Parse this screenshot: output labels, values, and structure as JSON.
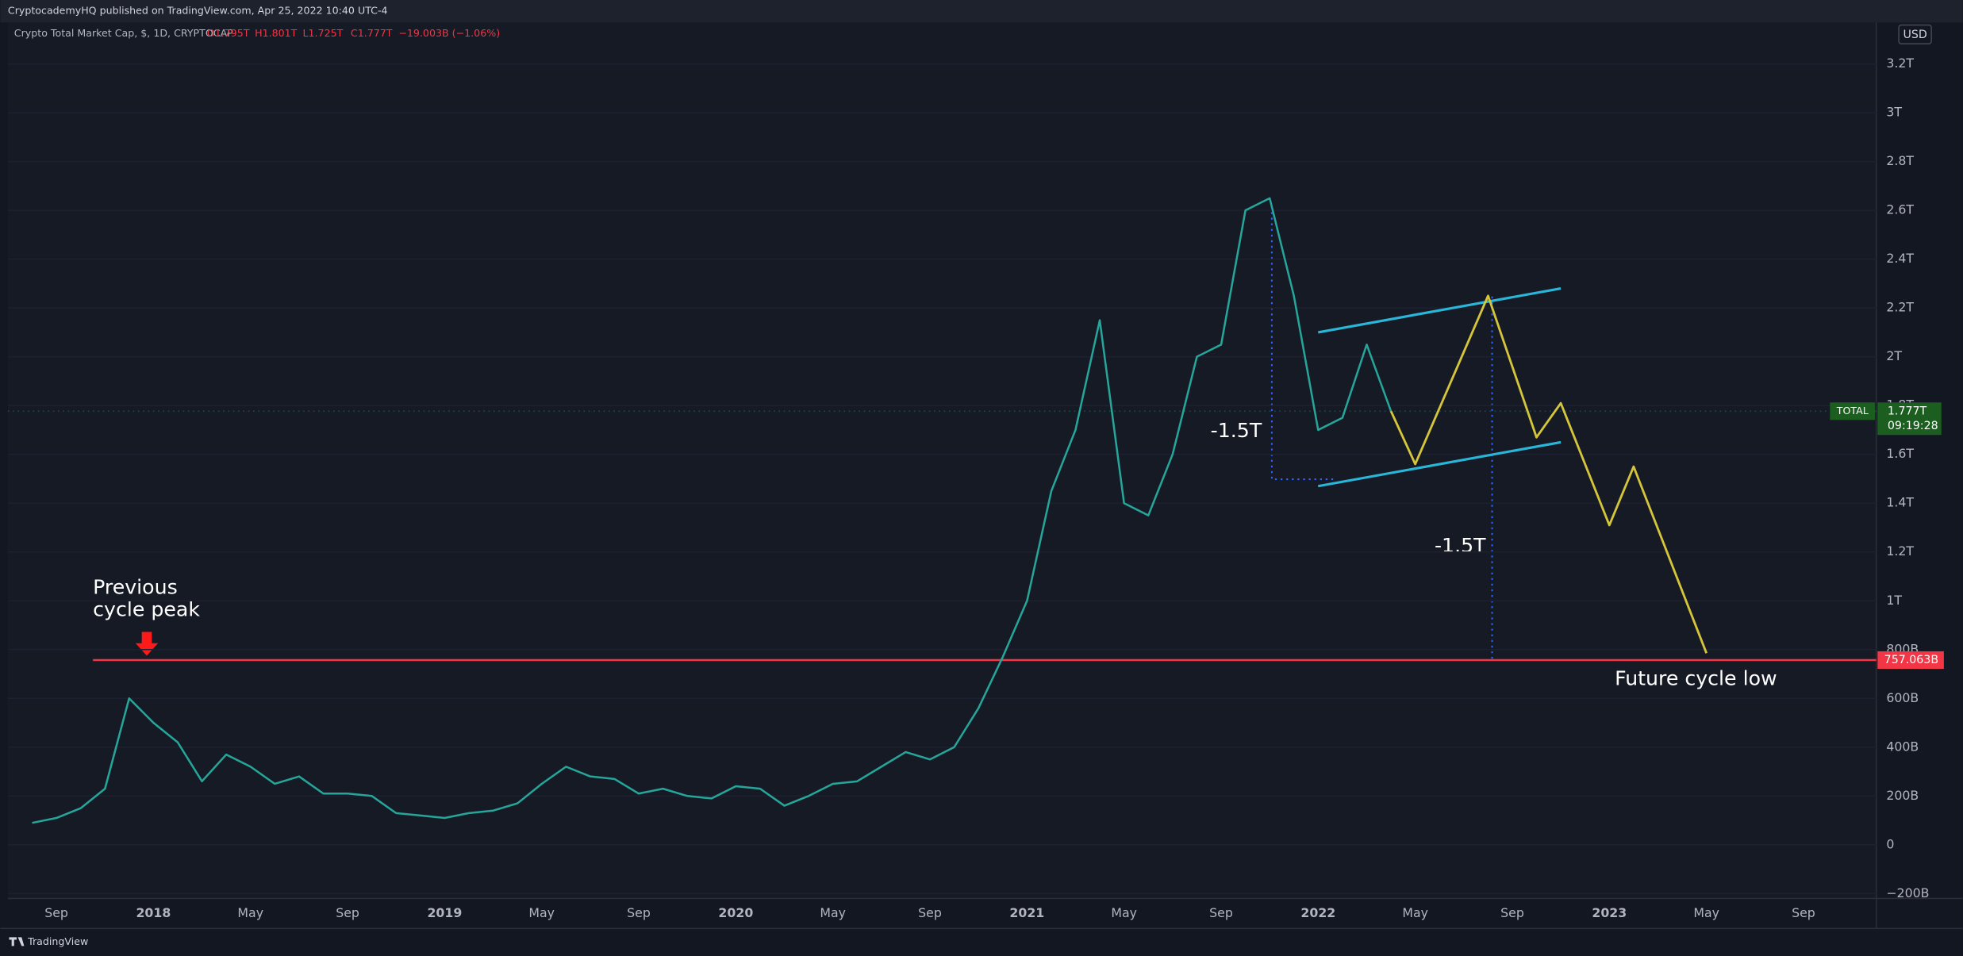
{
  "header": {
    "publisher": "CryptocademyHQ published on TradingView.com, Apr 25, 2022 10:40 UTC-4",
    "symbol": "Crypto Total Market Cap, $, 1D, CRYPTOCAP",
    "ohlc": [
      "O1.795T",
      "H1.801T",
      "L1.725T",
      "C1.777T",
      "−19.003B (−1.06%)"
    ],
    "currency": "USD"
  },
  "footer": "TradingView",
  "chart_data": {
    "type": "line",
    "x": [
      "2017-08",
      "2017-09",
      "2017-10",
      "2017-11",
      "2017-12",
      "2018-01",
      "2018-02",
      "2018-03",
      "2018-04",
      "2018-05",
      "2018-06",
      "2018-07",
      "2018-08",
      "2018-09",
      "2018-10",
      "2018-11",
      "2018-12",
      "2019-01",
      "2019-02",
      "2019-03",
      "2019-04",
      "2019-05",
      "2019-06",
      "2019-07",
      "2019-08",
      "2019-09",
      "2019-10",
      "2019-11",
      "2019-12",
      "2020-01",
      "2020-02",
      "2020-03",
      "2020-04",
      "2020-05",
      "2020-06",
      "2020-07",
      "2020-08",
      "2020-09",
      "2020-10",
      "2020-11",
      "2020-12",
      "2021-01",
      "2021-02",
      "2021-03",
      "2021-04",
      "2021-05",
      "2021-06",
      "2021-07",
      "2021-08",
      "2021-09",
      "2021-10",
      "2021-11",
      "2021-12",
      "2022-01",
      "2022-02",
      "2022-03",
      "2022-04"
    ],
    "series": [
      {
        "name": "TOTAL",
        "color": "#26a69a",
        "values": [
          90,
          110,
          150,
          230,
          600,
          500,
          420,
          260,
          370,
          320,
          250,
          280,
          210,
          210,
          200,
          130,
          120,
          110,
          130,
          140,
          170,
          250,
          320,
          280,
          270,
          210,
          230,
          200,
          190,
          240,
          230,
          160,
          200,
          250,
          260,
          320,
          380,
          350,
          400,
          560,
          770,
          1000,
          1450,
          1700,
          2150,
          1400,
          1350,
          1600,
          2000,
          2050,
          2600,
          2650,
          2250,
          1700,
          1750,
          2050,
          1777
        ]
      }
    ],
    "last": {
      "value": 1777,
      "label": "1.777T",
      "countdown": "09:19:28"
    },
    "level": {
      "value": 757.063,
      "label": "757.063B",
      "color": "#f23645"
    },
    "projection": {
      "color": "#d4c53a",
      "x": [
        "2022-04",
        "2022-05",
        "2022-08",
        "2022-10",
        "2022-11",
        "2023-01",
        "2023-02",
        "2023-05"
      ],
      "values": [
        1777,
        1560,
        2250,
        1670,
        1810,
        1310,
        1550,
        785
      ]
    },
    "channel": {
      "color": "#29b6d8",
      "upper": {
        "x": [
          "2022-01",
          "2022-11"
        ],
        "values": [
          2100,
          2280
        ]
      },
      "lower": {
        "x": [
          "2022-01",
          "2022-11"
        ],
        "values": [
          1470,
          1650
        ]
      }
    },
    "annotations": [
      "Previous\ncycle peak",
      "-1.5T",
      "-1.5T",
      "Future cycle low"
    ],
    "xlim": [
      "2017-07",
      "2023-12"
    ],
    "xticks": [
      {
        "value": "2017-09",
        "label": "Sep"
      },
      {
        "value": "2018-01",
        "label": "2018"
      },
      {
        "value": "2018-05",
        "label": "May"
      },
      {
        "value": "2018-09",
        "label": "Sep"
      },
      {
        "value": "2019-01",
        "label": "2019"
      },
      {
        "value": "2019-05",
        "label": "May"
      },
      {
        "value": "2019-09",
        "label": "Sep"
      },
      {
        "value": "2020-01",
        "label": "2020"
      },
      {
        "value": "2020-05",
        "label": "May"
      },
      {
        "value": "2020-09",
        "label": "Sep"
      },
      {
        "value": "2021-01",
        "label": "2021"
      },
      {
        "value": "2021-05",
        "label": "May"
      },
      {
        "value": "2021-09",
        "label": "Sep"
      },
      {
        "value": "2022-01",
        "label": "2022"
      },
      {
        "value": "2022-05",
        "label": "May"
      },
      {
        "value": "2022-09",
        "label": "Sep"
      },
      {
        "value": "2023-01",
        "label": "2023"
      },
      {
        "value": "2023-05",
        "label": "May"
      },
      {
        "value": "2023-09",
        "label": "Sep"
      }
    ],
    "ylim": [
      -220,
      3370
    ],
    "yticks": [
      {
        "value": -200,
        "label": "−200B"
      },
      0,
      {
        "value": 200,
        "label": "200B"
      },
      {
        "value": 400,
        "label": "400B"
      },
      {
        "value": 600,
        "label": "600B"
      },
      {
        "value": 800,
        "label": "800B"
      },
      {
        "value": 1000,
        "label": "1T"
      },
      {
        "value": 1200,
        "label": "1.2T"
      },
      {
        "value": 1400,
        "label": "1.4T"
      },
      {
        "value": 1600,
        "label": "1.6T"
      },
      {
        "value": 1800,
        "label": "1.8T"
      },
      {
        "value": 2000,
        "label": "2T"
      },
      {
        "value": 2200,
        "label": "2.2T"
      },
      {
        "value": 2400,
        "label": "2.4T"
      },
      {
        "value": 2600,
        "label": "2.6T"
      },
      {
        "value": 2800,
        "label": "2.8T"
      },
      {
        "value": 3000,
        "label": "3T"
      },
      {
        "value": 3200,
        "label": "3.2T"
      }
    ],
    "grid": true
  }
}
